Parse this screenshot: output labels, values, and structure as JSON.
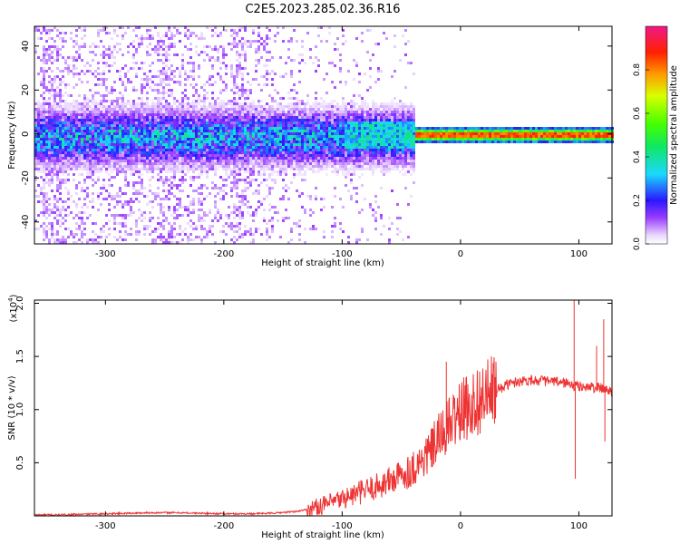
{
  "title": "C2E5.2023.285.02.36.R16",
  "chart_data": [
    {
      "type": "heatmap",
      "xlabel": "Height of straight line (km)",
      "ylabel": "Frequency (Hz)",
      "xlim": [
        -360,
        128
      ],
      "ylim": [
        -50,
        49
      ],
      "xticks": [
        -300,
        -200,
        -100,
        0,
        100
      ],
      "xtick_labels": [
        "-300",
        "-200",
        "-100",
        "0",
        "100"
      ],
      "yticks": [
        -40,
        -20,
        0,
        20,
        40
      ],
      "ytick_labels": [
        "-40",
        "-20",
        "0",
        "20",
        "40"
      ],
      "grid": false,
      "colorbar": {
        "label": "Normalized spectral amplitude",
        "range": [
          0,
          1
        ],
        "ticks": [
          0.0,
          0.2,
          0.4,
          0.6,
          0.8
        ],
        "tick_labels": [
          "0.0",
          "0.2",
          "0.4",
          "0.6",
          "0.8"
        ],
        "colormap": "rainbow (white-violet-blue-cyan-green-yellow-red-magenta)"
      },
      "description_values": {
        "band_center_hz": 0,
        "band_halfwidth_hz_low": 12,
        "band_halfwidth_hz_high": 2,
        "peak_amplitude_region_km": [
          -40,
          128
        ]
      }
    },
    {
      "type": "line",
      "xlabel": "Height of straight line (km)",
      "ylabel": "SNR (10 * v/v)",
      "y_multiplier": "(x10",
      "y_multiplier_exp": "4",
      "xlim": [
        -360,
        128
      ],
      "ylim": [
        0,
        2.03
      ],
      "xticks": [
        -300,
        -200,
        -100,
        0,
        100
      ],
      "xtick_labels": [
        "-300",
        "-200",
        "-100",
        "0",
        "100"
      ],
      "yticks": [
        0.5,
        1.0,
        1.5,
        2.0
      ],
      "ytick_labels": [
        "0.5",
        "1.0",
        "1.5",
        "2.0"
      ],
      "grid": false,
      "color": "#ee3333",
      "series": [
        {
          "x": [
            -360,
            -340,
            -320,
            -300,
            -280,
            -260,
            -240,
            -220,
            -200,
            -180,
            -160,
            -140,
            -130,
            -120,
            -110,
            -100,
            -90,
            -80,
            -70,
            -60,
            -50,
            -40,
            -30,
            -25,
            -20,
            -15,
            -10,
            -5,
            0,
            10,
            20,
            30,
            40,
            50,
            60,
            70,
            80,
            90,
            95,
            100,
            110,
            120,
            128
          ],
          "y": [
            0.01,
            0.01,
            0.015,
            0.02,
            0.025,
            0.03,
            0.03,
            0.025,
            0.02,
            0.02,
            0.025,
            0.04,
            0.06,
            0.09,
            0.12,
            0.16,
            0.2,
            0.24,
            0.28,
            0.33,
            0.38,
            0.45,
            0.55,
            0.62,
            0.7,
            0.78,
            0.85,
            0.92,
            0.98,
            1.05,
            1.12,
            1.18,
            1.24,
            1.27,
            1.28,
            1.27,
            1.26,
            1.25,
            1.22,
            1.22,
            1.21,
            1.2,
            1.17
          ]
        }
      ],
      "spikes": [
        {
          "x": -12,
          "y": 1.45
        },
        {
          "x": 96,
          "y": 2.03
        },
        {
          "x": 97,
          "y": 0.35
        },
        {
          "x": 115,
          "y": 1.6
        },
        {
          "x": 121,
          "y": 1.85
        },
        {
          "x": 122,
          "y": 0.7
        }
      ]
    }
  ]
}
